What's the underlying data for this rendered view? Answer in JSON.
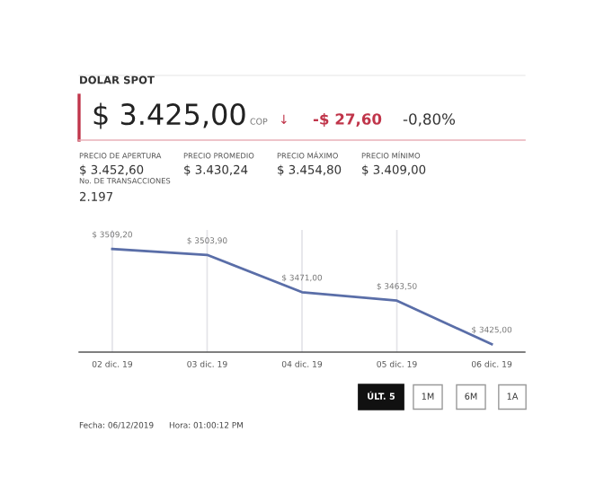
{
  "chart_data": {
    "type": "line",
    "title": "DOLAR SPOT",
    "categories": [
      "02 dic. 19",
      "03 dic. 19",
      "04 dic. 19",
      "05 dic. 19",
      "06 dic. 19"
    ],
    "series": [
      {
        "color": "#5a6ea8",
        "values": [
          3509.2,
          3503.9,
          3471.0,
          3463.5,
          3425.0
        ],
        "value_labels": [
          "$ 3509,20",
          "$ 3503,90",
          "$ 3471,00",
          "$ 3463,50",
          "$ 3425,00"
        ]
      }
    ],
    "ylim": [
      3418,
      3526
    ],
    "tick_labels": "x",
    "grid": "x",
    "marker": "none",
    "line_style": "solid",
    "annotations": [
      "$ 3.425,00",
      "COP",
      "↓",
      "-$ 27,60",
      "-0,80%",
      "PRECIO DE APERTURA",
      "PRECIO PROMEDIO",
      "PRECIO MÁXIMO",
      "PRECIO MÍNIMO",
      "$ 3.452,60",
      "$ 3.430,24",
      "$ 3.454,80",
      "$ 3.409,00",
      "No. DE TRANSACCIONES",
      "2.197",
      "ÚLT. 5",
      "1M",
      "6M",
      "1A",
      "Fecha: 06/12/2019",
      "Hora: 01:00:12 PM"
    ]
  }
}
